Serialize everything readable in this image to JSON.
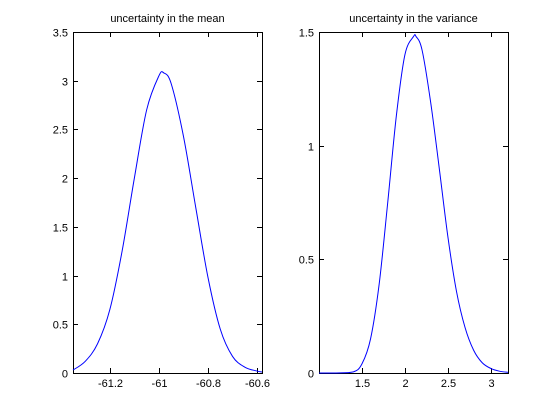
{
  "chart_data": [
    {
      "type": "line",
      "title": "uncertainty in the mean",
      "xlim": [
        -61.35,
        -60.58
      ],
      "ylim": [
        0,
        3.5
      ],
      "xticks": [
        -61.2,
        -61.0,
        -60.8,
        -60.6
      ],
      "xtick_labels": [
        "-61.2",
        "-61",
        "-60.8",
        "-60.6"
      ],
      "yticks": [
        0,
        0.5,
        1,
        1.5,
        2,
        2.5,
        3,
        3.5
      ],
      "ytick_labels": [
        "0",
        "0.5",
        "1",
        "1.5",
        "2",
        "2.5",
        "3",
        "3.5"
      ],
      "grid": false,
      "series": [
        {
          "color": "#0000ff",
          "x": [
            -61.35,
            -61.3,
            -61.25,
            -61.2,
            -61.15,
            -61.1,
            -61.05,
            -61.0,
            -60.98,
            -60.95,
            -60.9,
            -60.85,
            -60.8,
            -60.75,
            -60.7,
            -60.65,
            -60.6,
            -60.58
          ],
          "y": [
            0.03,
            0.12,
            0.3,
            0.65,
            1.25,
            2.0,
            2.7,
            3.05,
            3.08,
            2.97,
            2.43,
            1.7,
            0.98,
            0.45,
            0.17,
            0.06,
            0.02,
            0.01
          ]
        }
      ]
    },
    {
      "type": "line",
      "title": "uncertainty in the variance",
      "xlim": [
        1.0,
        3.2
      ],
      "ylim": [
        0,
        1.5
      ],
      "xticks": [
        1.5,
        2.0,
        2.5,
        3.0
      ],
      "xtick_labels": [
        "1.5",
        "2",
        "2.5",
        "3"
      ],
      "yticks": [
        0,
        0.5,
        1,
        1.5
      ],
      "ytick_labels": [
        "0",
        "0.5",
        "1",
        "1.5"
      ],
      "grid": false,
      "series": [
        {
          "color": "#0000ff",
          "x": [
            1.0,
            1.2,
            1.4,
            1.5,
            1.6,
            1.7,
            1.8,
            1.9,
            2.0,
            2.1,
            2.13,
            2.2,
            2.3,
            2.4,
            2.5,
            2.6,
            2.7,
            2.8,
            2.9,
            3.0,
            3.1,
            3.2
          ],
          "y": [
            0.0,
            0.0,
            0.005,
            0.04,
            0.15,
            0.39,
            0.75,
            1.13,
            1.4,
            1.48,
            1.48,
            1.42,
            1.19,
            0.9,
            0.6,
            0.36,
            0.2,
            0.1,
            0.045,
            0.02,
            0.008,
            0.003
          ]
        }
      ]
    }
  ]
}
